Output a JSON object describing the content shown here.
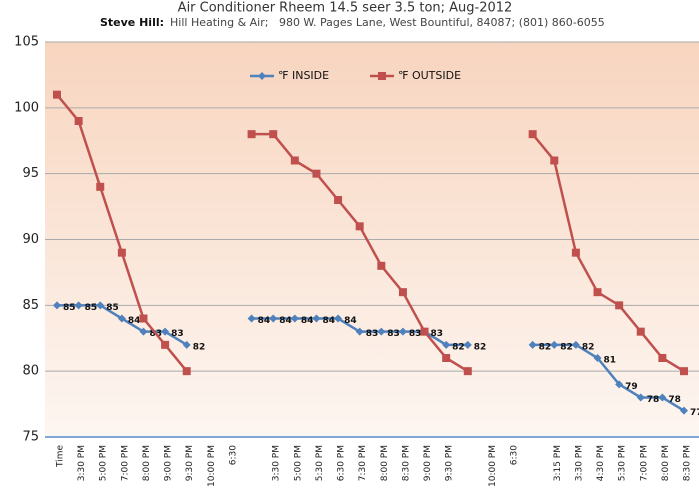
{
  "chart_data": {
    "type": "line",
    "title": "Air Conditioner Rheem 14.5 seer 3.5 ton; Aug-2012",
    "subtitle_name": "Steve Hill:",
    "subtitle": "Hill Heating & Air;   980 W. Pages Lane, West Bountiful, 84087; (801) 860-6055",
    "categories": [
      "Time",
      "3:30 PM",
      "5:00 PM",
      "7:00 PM",
      "8:00 PM",
      "9:00 PM",
      "9:30 PM",
      "10:00 PM",
      "6:30",
      null,
      "3:30 PM",
      "5:00 PM",
      "5:30 PM",
      "6:30 PM",
      "7:30 PM",
      "8:00 PM",
      "8:30 PM",
      "9:00 PM",
      "9:30 PM",
      null,
      "10:00 PM",
      "6:30",
      null,
      "3:15 PM",
      "3:30 PM",
      "4:30 PM",
      "5:30 PM",
      "7:00 PM",
      "8:00 PM",
      "8:30 PM"
    ],
    "series": [
      {
        "name": "℉ INSIDE",
        "color": "#4f81bd",
        "marker": "diamond",
        "data_labels": true,
        "values": [
          85,
          85,
          85,
          84,
          83,
          83,
          82,
          null,
          null,
          84,
          84,
          84,
          84,
          84,
          83,
          83,
          83,
          83,
          82,
          82,
          null,
          null,
          82,
          82,
          82,
          81,
          79,
          78,
          78,
          77
        ]
      },
      {
        "name": "℉ OUTSIDE",
        "color": "#c0504d",
        "marker": "square",
        "data_labels": false,
        "values": [
          101,
          99,
          94,
          89,
          84,
          82,
          80,
          null,
          null,
          98,
          98,
          96,
          95,
          93,
          91,
          88,
          86,
          83,
          81,
          80,
          null,
          null,
          98,
          96,
          89,
          86,
          85,
          83,
          81,
          80
        ]
      }
    ],
    "ylim": [
      75,
      105
    ],
    "yticks": [
      75,
      80,
      85,
      90,
      95,
      100,
      105
    ],
    "grid": true,
    "legend": "top"
  }
}
